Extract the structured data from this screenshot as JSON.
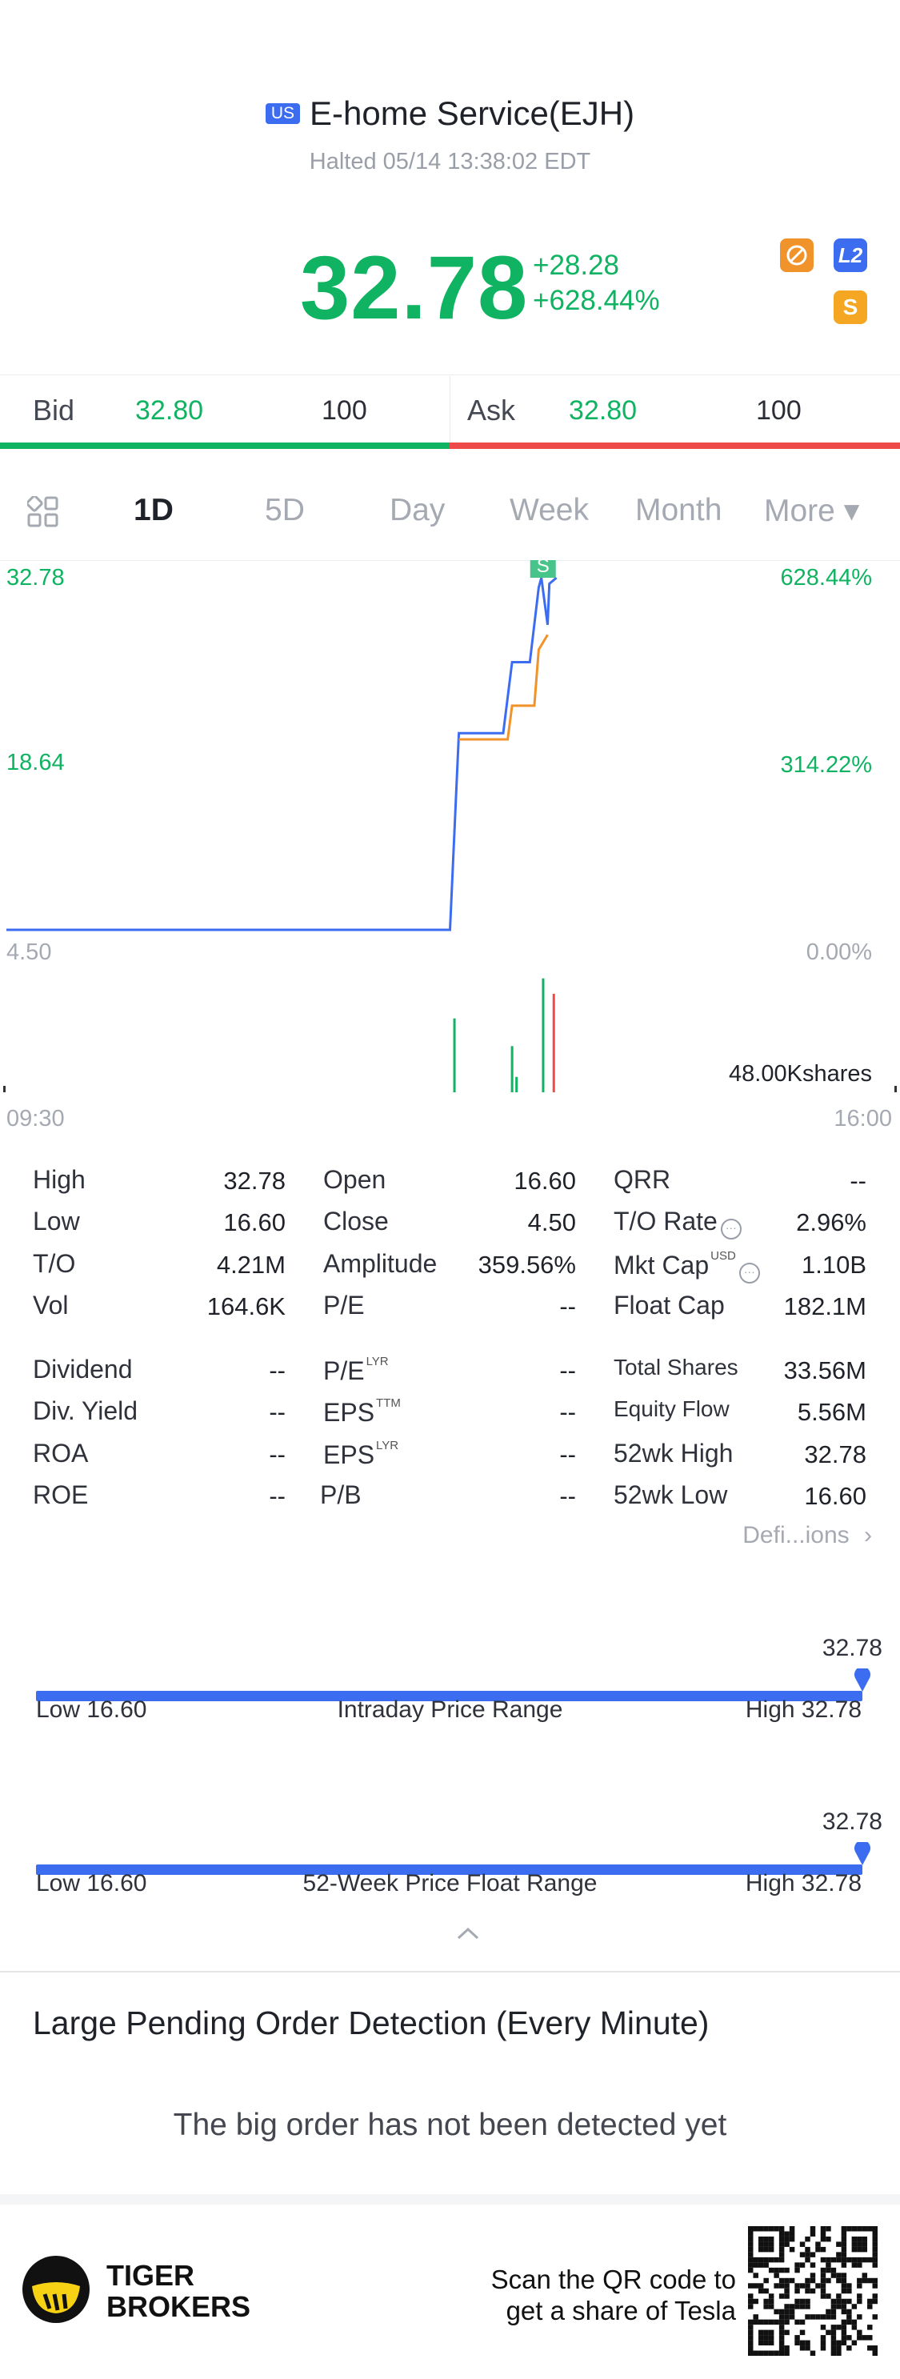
{
  "header": {
    "market_badge": "US",
    "name": "E-home Service(EJH)",
    "status": "Halted 05/14 13:38:02 EDT"
  },
  "quote": {
    "price": "32.78",
    "change": "+28.28",
    "change_pct": "+628.44%",
    "icons": [
      "no-trade-icon",
      "level2-icon",
      "dollar-icon"
    ],
    "l2_label": "L2",
    "dollar_label": "S"
  },
  "orderbook": {
    "bid_label": "Bid",
    "bid_price": "32.80",
    "bid_qty": "100",
    "ask_label": "Ask",
    "ask_price": "32.80",
    "ask_qty": "100"
  },
  "tabs": [
    "1D",
    "5D",
    "Day",
    "Week",
    "Month",
    "More ▾"
  ],
  "active_tab": "1D",
  "chart_data": {
    "type": "line",
    "x_labels": [
      "09:30",
      "16:00"
    ],
    "y_left_ticks": [
      "32.78",
      "18.64",
      "4.50"
    ],
    "y_right_ticks": [
      "628.44%",
      "314.22%",
      "0.00%"
    ],
    "ylim": [
      4.5,
      32.78
    ],
    "marker_label": "S",
    "volume_label": "48.00Kshares",
    "colors": {
      "price_line": "#3c6df0",
      "avg_line": "#f0932b",
      "up": "#0fb361",
      "down": "#ef4a4a"
    },
    "series": [
      {
        "name": "price",
        "x": [
          0,
          0.5,
          0.51,
          0.56,
          0.57,
          0.59,
          0.6,
          0.603,
          0.61,
          0.612,
          0.62
        ],
        "y": [
          4.5,
          4.5,
          20.3,
          20.3,
          26.0,
          26.0,
          32.0,
          32.78,
          29.0,
          32.3,
          32.78
        ]
      },
      {
        "name": "avg",
        "x": [
          0.51,
          0.565,
          0.57,
          0.595,
          0.6,
          0.61
        ],
        "y": [
          19.8,
          19.8,
          22.5,
          22.5,
          27.0,
          28.2
        ]
      }
    ],
    "volume": [
      {
        "x": 0.505,
        "v": 48,
        "dir": "up"
      },
      {
        "x": 0.57,
        "v": 30,
        "dir": "up"
      },
      {
        "x": 0.575,
        "v": 10,
        "dir": "up"
      },
      {
        "x": 0.605,
        "v": 74,
        "dir": "up"
      },
      {
        "x": 0.617,
        "v": 64,
        "dir": "down"
      }
    ]
  },
  "stats": {
    "col1": [
      {
        "label": "High",
        "value": "32.78"
      },
      {
        "label": "Low",
        "value": "16.60"
      },
      {
        "label": "T/O",
        "value": "4.21M"
      },
      {
        "label": "Vol",
        "value": "164.6K"
      }
    ],
    "col2": [
      {
        "label": "Open",
        "value": "16.60"
      },
      {
        "label": "Close",
        "value": "4.50"
      },
      {
        "label": "Amplitude",
        "value": "359.56%"
      },
      {
        "label": "P/E",
        "value": "--"
      }
    ],
    "col3": [
      {
        "label": "QRR",
        "value": "--"
      },
      {
        "label": "T/O Rate",
        "value": "2.96%"
      },
      {
        "label": "Mkt Cap",
        "value": "1.10B",
        "sup": "USD"
      },
      {
        "label": "Float Cap",
        "value": "182.1M"
      }
    ],
    "col1b": [
      {
        "label": "Dividend",
        "value": "--"
      },
      {
        "label": "Div. Yield",
        "value": "--"
      },
      {
        "label": "ROA",
        "value": "--"
      },
      {
        "label": "ROE",
        "value": "--"
      }
    ],
    "col2b": [
      {
        "label": "P/E",
        "sup": "LYR",
        "value": "--"
      },
      {
        "label": "EPS",
        "sup": "TTM",
        "value": "--"
      },
      {
        "label": "EPS",
        "sup": "LYR",
        "value": "--"
      },
      {
        "label": "P/B",
        "value": "--"
      }
    ],
    "col3b": [
      {
        "label": "Total Shares",
        "value": "33.56M"
      },
      {
        "label": "Equity Flow",
        "value": "5.56M"
      },
      {
        "label": "52wk High",
        "value": "32.78"
      },
      {
        "label": "52wk Low",
        "value": "16.60"
      }
    ],
    "definitions_link": "Defi...ions"
  },
  "ranges": [
    {
      "marker_value": "32.78",
      "low": "Low 16.60",
      "title": "Intraday Price Range",
      "high": "High 32.78",
      "position": 1.0
    },
    {
      "marker_value": "32.78",
      "low": "Low 16.60",
      "title": "52-Week Price Float Range",
      "high": "High 32.78",
      "position": 1.0
    }
  ],
  "pending": {
    "title": "Large Pending Order Detection (Every Minute)",
    "message": "The big order has not been detected yet"
  },
  "footer": {
    "brand_line1": "TIGER",
    "brand_line2": "BROKERS",
    "scan_line1": "Scan the QR code to",
    "scan_line2": "get a share of Tesla"
  }
}
